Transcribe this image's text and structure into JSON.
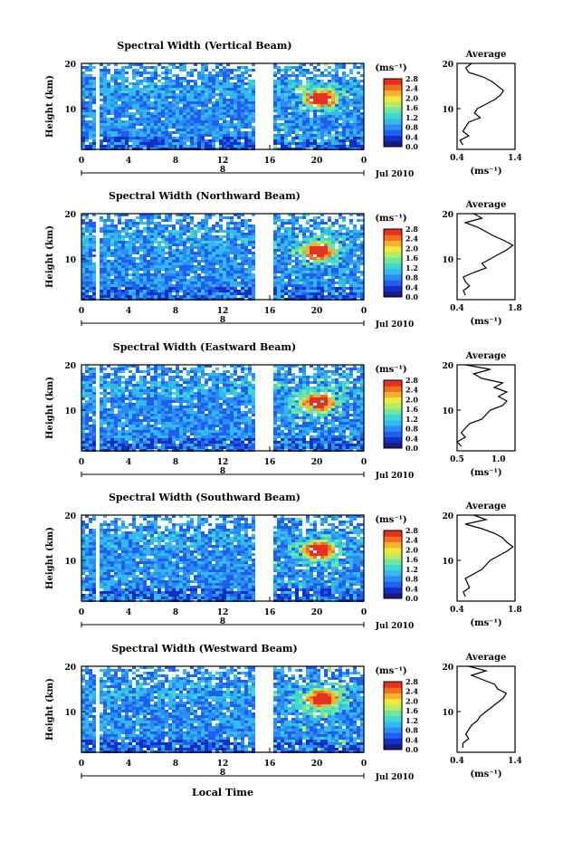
{
  "figure": {
    "xlabel": "Local Time",
    "date_label": "Jul 2010",
    "day_label": "8",
    "unit_label": "(ms⁻¹)",
    "avg_title": "Average",
    "avg_xlabel": "(ms⁻¹)",
    "ylabel": "Height (km)"
  },
  "colors": {
    "colormap": [
      "#1a1a80",
      "#1230c8",
      "#1e5ef0",
      "#2a8cf5",
      "#34b8f0",
      "#3ed8d0",
      "#6ee6a0",
      "#b4ee60",
      "#f0e83c",
      "#f8b030",
      "#f07020",
      "#e83020"
    ],
    "background_field": "#2a55e8",
    "hot_spot": "#e83020"
  },
  "chart_data": [
    {
      "type": "heatmap",
      "title": "Spectral Width (Vertical Beam)",
      "x_ticks": [
        "0",
        "4",
        "8",
        "12",
        "16",
        "20",
        "0"
      ],
      "xlim": [
        0,
        24
      ],
      "y_ticks": [
        "20",
        "10"
      ],
      "ylim": [
        1,
        20
      ],
      "colorbar_ticks": [
        "2.8",
        "2.4",
        "2.0",
        "1.6",
        "1.2",
        "0.8",
        "0.4",
        "0.0"
      ],
      "colorbar_range": [
        0.0,
        2.8
      ],
      "data_gaps_hours": [
        [
          1.0,
          1.3
        ],
        [
          14.7,
          16.2
        ]
      ],
      "hot_spot": {
        "time_h": 20.2,
        "height_km": 12.5,
        "value": 2.8
      },
      "average": {
        "xlim": [
          0.4,
          1.4
        ],
        "x_ticks": [
          "0.4",
          "1.4"
        ],
        "y_ticks": [
          "20",
          "10"
        ],
        "heights": [
          2,
          3,
          4,
          5,
          6,
          7,
          8,
          9,
          10,
          11,
          12,
          13,
          14,
          15,
          16,
          17,
          18,
          19,
          20
        ],
        "values": [
          0.5,
          0.45,
          0.6,
          0.5,
          0.55,
          0.6,
          0.8,
          0.7,
          0.75,
          0.9,
          1.05,
          1.15,
          1.2,
          1.1,
          1.0,
          0.85,
          0.6,
          0.55,
          0.65
        ]
      }
    },
    {
      "type": "heatmap",
      "title": "Spectral Width (Northward Beam)",
      "x_ticks": [
        "0",
        "4",
        "8",
        "12",
        "16",
        "20",
        "0"
      ],
      "xlim": [
        0,
        24
      ],
      "y_ticks": [
        "20",
        "10"
      ],
      "ylim": [
        1,
        20
      ],
      "colorbar_ticks": [
        "2.8",
        "2.4",
        "2.0",
        "1.6",
        "1.2",
        "0.8",
        "0.4",
        "0.0"
      ],
      "colorbar_range": [
        0.0,
        2.8
      ],
      "data_gaps_hours": [
        [
          1.0,
          1.3
        ],
        [
          14.7,
          16.2
        ]
      ],
      "hot_spot": {
        "time_h": 20.0,
        "height_km": 12.0,
        "value": 2.8
      },
      "average": {
        "xlim": [
          0.4,
          1.8
        ],
        "x_ticks": [
          "0.4",
          "1.8"
        ],
        "y_ticks": [
          "20",
          "10"
        ],
        "heights": [
          2,
          3,
          4,
          5,
          6,
          7,
          8,
          9,
          10,
          11,
          12,
          13,
          14,
          15,
          16,
          17,
          18,
          19,
          20
        ],
        "values": [
          0.6,
          0.55,
          0.7,
          0.6,
          0.55,
          0.8,
          1.1,
          1.0,
          1.2,
          1.4,
          1.6,
          1.75,
          1.55,
          1.3,
          1.1,
          0.9,
          0.6,
          1.0,
          0.8
        ]
      }
    },
    {
      "type": "heatmap",
      "title": "Spectral Width (Eastward Beam)",
      "x_ticks": [
        "0",
        "4",
        "8",
        "12",
        "16",
        "20",
        "0"
      ],
      "xlim": [
        0,
        24
      ],
      "y_ticks": [
        "20",
        "10"
      ],
      "ylim": [
        1,
        20
      ],
      "colorbar_ticks": [
        "2.8",
        "2.4",
        "2.0",
        "1.6",
        "1.2",
        "0.8",
        "0.4",
        "0.0"
      ],
      "colorbar_range": [
        0.0,
        2.8
      ],
      "data_gaps_hours": [
        [
          1.0,
          1.3
        ],
        [
          14.7,
          16.2
        ]
      ],
      "hot_spot": {
        "time_h": 20.0,
        "height_km": 12.0,
        "value": 2.8
      },
      "average": {
        "xlim": [
          0.5,
          1.2
        ],
        "x_ticks": [
          "0.5",
          "1.0"
        ],
        "y_ticks": [
          "20",
          "10"
        ],
        "heights": [
          2,
          3,
          4,
          5,
          6,
          7,
          8,
          9,
          10,
          11,
          12,
          13,
          14,
          15,
          16,
          17,
          18,
          19,
          20
        ],
        "values": [
          0.55,
          0.5,
          0.6,
          0.55,
          0.6,
          0.65,
          0.8,
          0.85,
          0.9,
          1.05,
          1.1,
          1.0,
          1.1,
          0.95,
          1.05,
          0.8,
          0.7,
          0.9,
          0.6
        ]
      }
    },
    {
      "type": "heatmap",
      "title": "Spectral Width (Southward Beam)",
      "x_ticks": [
        "0",
        "4",
        "8",
        "12",
        "16",
        "20",
        "0"
      ],
      "xlim": [
        0,
        24
      ],
      "y_ticks": [
        "20",
        "10"
      ],
      "ylim": [
        1,
        20
      ],
      "colorbar_ticks": [
        "2.8",
        "2.4",
        "2.0",
        "1.6",
        "1.2",
        "0.8",
        "0.4",
        "0.0"
      ],
      "colorbar_range": [
        0.0,
        2.8
      ],
      "data_gaps_hours": [
        [
          1.0,
          1.3
        ],
        [
          14.7,
          16.2
        ]
      ],
      "hot_spot": {
        "time_h": 20.0,
        "height_km": 12.5,
        "value": 2.8
      },
      "average": {
        "xlim": [
          0.4,
          1.8
        ],
        "x_ticks": [
          "0.4",
          "1.8"
        ],
        "y_ticks": [
          "20",
          "10"
        ],
        "heights": [
          2,
          3,
          4,
          5,
          6,
          7,
          8,
          9,
          10,
          11,
          12,
          13,
          14,
          15,
          16,
          17,
          18,
          19,
          20
        ],
        "values": [
          0.6,
          0.55,
          0.7,
          0.65,
          0.6,
          0.8,
          1.0,
          1.1,
          1.2,
          1.4,
          1.6,
          1.75,
          1.6,
          1.5,
          1.3,
          1.0,
          0.6,
          1.1,
          0.8
        ]
      }
    },
    {
      "type": "heatmap",
      "title": "Spectral Width (Westward Beam)",
      "x_ticks": [
        "0",
        "4",
        "8",
        "12",
        "16",
        "20",
        "0"
      ],
      "xlim": [
        0,
        24
      ],
      "y_ticks": [
        "20",
        "10"
      ],
      "ylim": [
        1,
        20
      ],
      "colorbar_ticks": [
        "2.8",
        "2.4",
        "2.0",
        "1.6",
        "1.2",
        "0.8",
        "0.4",
        "0.0"
      ],
      "colorbar_range": [
        0.0,
        2.8
      ],
      "data_gaps_hours": [
        [
          1.0,
          1.3
        ],
        [
          14.7,
          16.2
        ]
      ],
      "hot_spot": {
        "time_h": 20.3,
        "height_km": 13.0,
        "value": 2.8
      },
      "average": {
        "xlim": [
          0.4,
          1.4
        ],
        "x_ticks": [
          "0.4",
          "1.4"
        ],
        "y_ticks": [
          "20",
          "10"
        ],
        "heights": [
          2,
          3,
          4,
          5,
          6,
          7,
          8,
          9,
          10,
          11,
          12,
          13,
          14,
          15,
          16,
          17,
          18,
          19,
          20
        ],
        "values": [
          0.5,
          0.5,
          0.6,
          0.55,
          0.6,
          0.65,
          0.75,
          0.8,
          0.9,
          1.0,
          1.1,
          1.2,
          1.25,
          1.1,
          1.05,
          0.85,
          0.65,
          0.9,
          0.6
        ]
      }
    }
  ]
}
